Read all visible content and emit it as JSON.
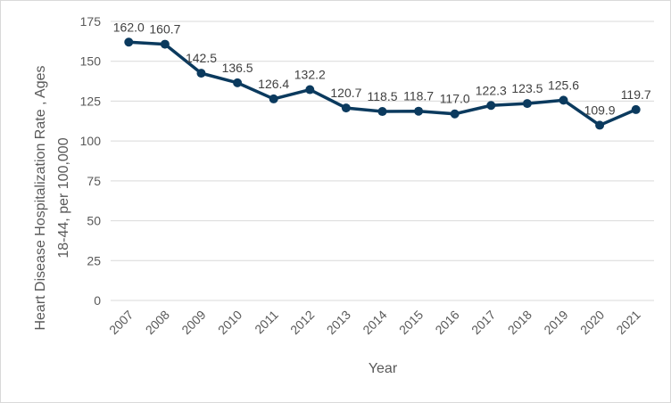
{
  "chart_data": {
    "type": "line",
    "title": "",
    "xlabel": "Year",
    "ylabel_lines": [
      "Heart Disease Hospitalization Rate , Ages",
      "18-44, per 100,000"
    ],
    "categories": [
      "2007",
      "2008",
      "2009",
      "2010",
      "2011",
      "2012",
      "2013",
      "2014",
      "2015",
      "2016",
      "2017",
      "2018",
      "2019",
      "2020",
      "2021"
    ],
    "series": [
      {
        "values": [
          162.0,
          160.7,
          142.5,
          136.5,
          126.4,
          132.2,
          120.7,
          118.5,
          118.7,
          117.0,
          122.3,
          123.5,
          125.6,
          109.9,
          119.7
        ],
        "labels": [
          "162.0",
          "160.7",
          "142.5",
          "136.5",
          "126.4",
          "132.2",
          "120.7",
          "118.5",
          "118.7",
          "117.0",
          "122.3",
          "123.5",
          "125.6",
          "109.9",
          "119.7"
        ],
        "color": "#0b3a5e"
      }
    ],
    "ylim": [
      0,
      175
    ],
    "yticks": [
      0,
      25,
      50,
      75,
      100,
      125,
      150,
      175
    ],
    "grid": true,
    "legend": "none",
    "gridColor": "#d9d9d9"
  }
}
